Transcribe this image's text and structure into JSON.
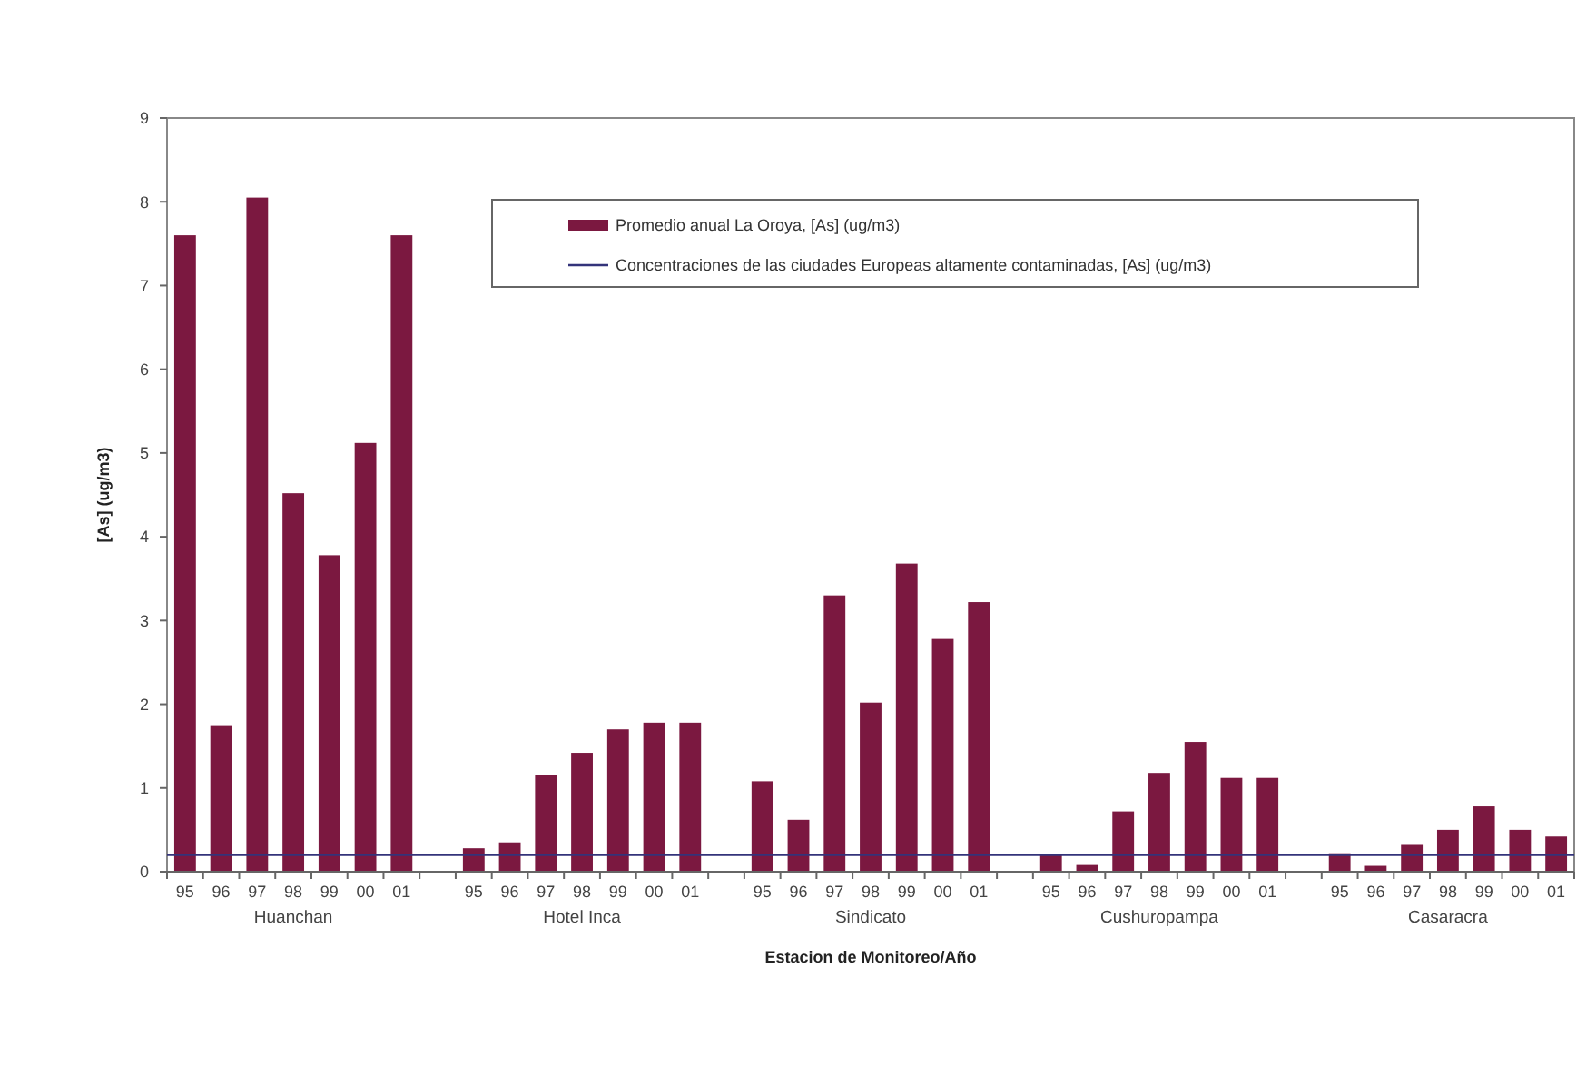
{
  "chart_data": {
    "type": "bar",
    "xlabel": "Estacion de Monitoreo/Año",
    "ylabel": "[As] (ug/m3)",
    "categories": [
      "95",
      "96",
      "97",
      "98",
      "99",
      "00",
      "01",
      null,
      "95",
      "96",
      "97",
      "98",
      "99",
      "00",
      "01",
      null,
      "95",
      "96",
      "97",
      "98",
      "99",
      "00",
      "01",
      null,
      "95",
      "96",
      "97",
      "98",
      "99",
      "00",
      "01",
      null,
      "95",
      "96",
      "97",
      "98",
      "99",
      "00",
      "01"
    ],
    "series": [
      {
        "name": "Promedio anual La Oroya, [As] (ug/m3)",
        "color": "#7b1840",
        "values": [
          7.6,
          1.75,
          8.05,
          4.52,
          3.78,
          5.12,
          7.6,
          null,
          0.28,
          0.35,
          1.15,
          1.42,
          1.7,
          1.78,
          1.78,
          null,
          1.08,
          0.62,
          3.3,
          2.02,
          3.68,
          2.78,
          3.22,
          null,
          0.2,
          0.08,
          0.72,
          1.18,
          1.55,
          1.12,
          1.12,
          null,
          0.22,
          0.07,
          0.32,
          0.5,
          0.78,
          0.5,
          0.42
        ]
      }
    ],
    "ref_lines": [
      {
        "axis": "y",
        "value": 0.2,
        "label": "Concentraciones de las ciudades Europeas altamente contaminadas, [As] (ug/m3)",
        "color": "#33337a"
      }
    ],
    "annotations": [
      "Huanchan",
      "Hotel Inca",
      "Sindicato",
      "Cushuropampa",
      "Casaracra"
    ],
    "ylim": [
      0,
      9
    ],
    "yticks": [
      0,
      1,
      2,
      3,
      4,
      5,
      6,
      7,
      8,
      9
    ],
    "legend": "top right"
  }
}
